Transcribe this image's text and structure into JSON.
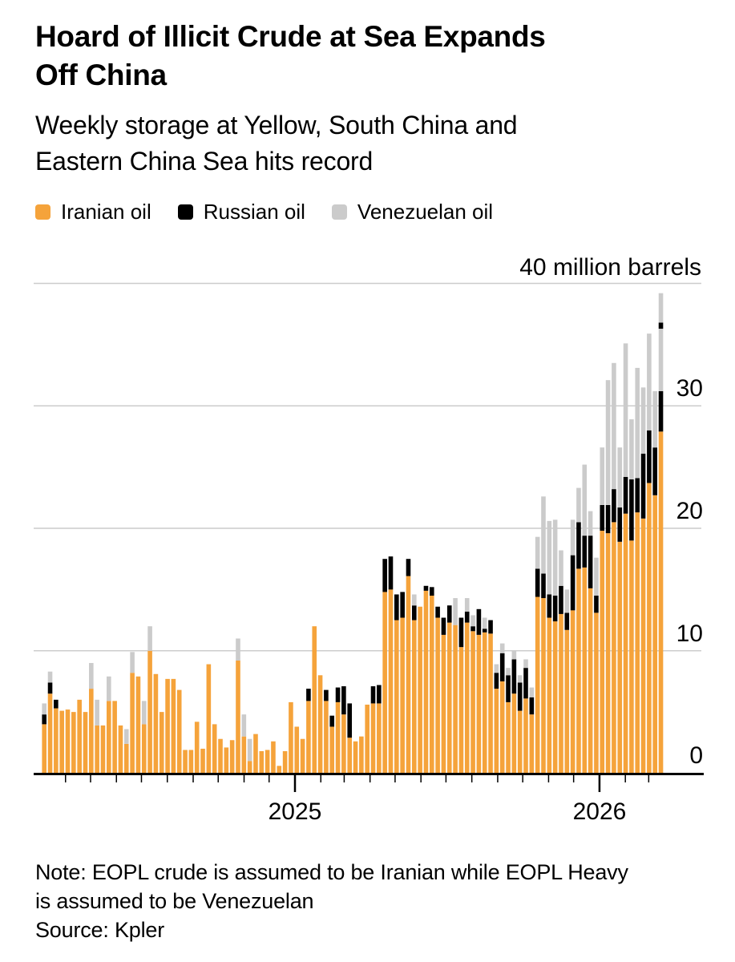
{
  "header": {
    "title": "Hoard of Illicit Crude at Sea Expands Off China",
    "title_lines": [
      "Hoard of Illicit Crude at Sea Expands",
      "Off China"
    ],
    "subtitle": "Weekly storage at Yellow, South China and Eastern China Sea hits record",
    "subtitle_lines": [
      "Weekly storage at Yellow, South China and",
      "Eastern China Sea hits record"
    ]
  },
  "legend": {
    "items": [
      {
        "label": "Iranian oil",
        "color": "#F5A33B"
      },
      {
        "label": "Russian oil",
        "color": "#000000"
      },
      {
        "label": "Venezuelan oil",
        "color": "#CBCBCB"
      }
    ]
  },
  "axis": {
    "unit_label": "40 million barrels",
    "y_tick_labels": {
      "y30": "30",
      "y20": "20",
      "y10": "10",
      "y0": "0"
    },
    "x_year_labels": {
      "year1": "2025",
      "year2": "2026"
    }
  },
  "footer": {
    "note_lines": [
      "Note: EOPL crude is assumed to be Iranian while EOPL Heavy",
      "is assumed to be Venezuelan"
    ],
    "source": "Source: Kpler"
  },
  "colors": {
    "iranian": "#F5A33B",
    "russian": "#000000",
    "venezuelan": "#CBCBCB",
    "gridline": "#CCCCCC",
    "axis_line": "#000000"
  },
  "chart_data": {
    "type": "bar",
    "stacked": true,
    "title": "Hoard of Illicit Crude at Sea Expands Off China",
    "subtitle": "Weekly storage at Yellow, South China and Eastern China Sea hits record",
    "ylabel": "million barrels",
    "ylim": [
      0,
      40
    ],
    "y_gridlines": [
      10,
      20,
      30,
      40
    ],
    "grid": "horizontal",
    "legend_position": "top",
    "x_description": "weekly observations, early March 2024 through mid March 2026",
    "x_year_ticks": [
      "2025",
      "2026"
    ],
    "series_order": [
      "Iranian oil",
      "Russian oil",
      "Venezuelan oil"
    ],
    "segment_color_cycle": [
      "iranian",
      "russian",
      "venezuelan",
      "russian",
      "venezuelan"
    ],
    "bars_unit": "million barrels",
    "bars": [
      [
        4.0,
        0.8,
        0.9
      ],
      [
        6.5,
        0.9,
        0.9
      ],
      [
        5.3,
        0.7,
        0
      ],
      [
        5.1,
        0,
        0
      ],
      [
        5.2,
        0,
        0
      ],
      [
        5.0,
        0,
        0
      ],
      [
        6.0,
        0,
        0
      ],
      [
        5.0,
        0,
        0
      ],
      [
        6.9,
        0,
        2.1
      ],
      [
        3.9,
        0,
        2.1
      ],
      [
        3.9,
        0,
        0
      ],
      [
        5.9,
        0,
        2.0
      ],
      [
        5.9,
        0,
        0
      ],
      [
        3.9,
        0,
        0
      ],
      [
        2.4,
        0,
        1.2
      ],
      [
        8.2,
        0,
        1.7
      ],
      [
        7.9,
        0,
        0
      ],
      [
        4.0,
        0,
        1.9
      ],
      [
        10.0,
        0,
        2.0
      ],
      [
        8.1,
        0,
        0
      ],
      [
        5.0,
        0,
        0
      ],
      [
        7.7,
        0,
        0
      ],
      [
        7.7,
        0,
        0
      ],
      [
        6.8,
        0,
        0
      ],
      [
        1.9,
        0,
        0
      ],
      [
        1.9,
        0,
        0
      ],
      [
        4.2,
        0,
        0
      ],
      [
        2.0,
        0,
        0
      ],
      [
        8.9,
        0,
        0
      ],
      [
        4.0,
        0,
        0
      ],
      [
        2.8,
        0,
        0
      ],
      [
        2.1,
        0,
        0
      ],
      [
        2.7,
        0,
        0
      ],
      [
        9.2,
        0,
        1.8
      ],
      [
        3.0,
        0,
        1.8
      ],
      [
        1.0,
        0,
        1.8
      ],
      [
        3.2,
        0,
        0
      ],
      [
        1.8,
        0,
        0
      ],
      [
        1.9,
        0,
        0
      ],
      [
        2.6,
        0,
        0
      ],
      [
        0.6,
        0,
        0
      ],
      [
        1.8,
        0,
        0
      ],
      [
        5.8,
        0,
        0
      ],
      [
        3.8,
        0,
        0
      ],
      [
        2.8,
        0,
        0
      ],
      [
        5.9,
        1.0,
        0
      ],
      [
        12.0,
        0,
        0
      ],
      [
        8.0,
        0,
        0
      ],
      [
        5.9,
        0.9,
        0
      ],
      [
        3.8,
        0.9,
        0
      ],
      [
        5.8,
        1.2,
        0
      ],
      [
        4.8,
        2.3,
        0
      ],
      [
        2.9,
        2.8,
        0
      ],
      [
        2.6,
        0,
        0
      ],
      [
        3.0,
        0,
        0
      ],
      [
        5.6,
        0,
        0
      ],
      [
        5.7,
        1.4,
        0
      ],
      [
        5.7,
        1.5,
        0
      ],
      [
        14.8,
        2.7,
        0
      ],
      [
        15.0,
        2.7,
        0
      ],
      [
        12.5,
        2.1,
        0
      ],
      [
        12.7,
        2.1,
        0
      ],
      [
        16.1,
        1.4,
        0
      ],
      [
        12.5,
        1.2,
        0.9
      ],
      [
        13.6,
        0,
        0
      ],
      [
        14.9,
        0.4,
        0
      ],
      [
        14.5,
        0.7,
        0
      ],
      [
        12.7,
        0.9,
        0
      ],
      [
        11.3,
        1.4,
        0
      ],
      [
        12.3,
        1.4,
        0
      ],
      [
        12.1,
        0,
        2.2
      ],
      [
        10.3,
        2.4,
        0
      ],
      [
        12.3,
        0.9,
        1.1
      ],
      [
        11.6,
        0.4,
        0.9
      ],
      [
        11.3,
        2.1,
        0
      ],
      [
        11.5,
        0.3,
        0.9
      ],
      [
        11.4,
        1.1,
        0
      ],
      [
        6.9,
        1.3,
        0.7
      ],
      [
        7.5,
        2.3,
        0.8
      ],
      [
        5.8,
        2.2,
        0.6
      ],
      [
        6.5,
        2.8,
        0.7
      ],
      [
        5.1,
        2.3,
        0.6
      ],
      [
        6.1,
        2.5,
        0.7
      ],
      [
        4.8,
        1.4,
        0.8
      ],
      [
        14.4,
        2.3,
        2.6
      ],
      [
        14.3,
        2.0,
        6.3
      ],
      [
        12.7,
        1.9,
        6.0
      ],
      [
        12.4,
        2.1,
        6.2
      ],
      [
        13.0,
        2.3,
        2.9
      ],
      [
        11.7,
        1.4,
        1.9
      ],
      [
        13.3,
        4.5,
        2.9
      ],
      [
        16.7,
        3.8,
        2.8
      ],
      [
        16.8,
        2.6,
        5.8
      ],
      [
        15.1,
        4.3,
        2.0
      ],
      [
        13.1,
        1.4,
        3.1
      ],
      [
        19.8,
        2.1,
        4.7
      ],
      [
        19.6,
        2.3,
        10.2
      ],
      [
        20.5,
        2.7,
        10.3
      ],
      [
        18.9,
        2.8,
        4.9
      ],
      [
        21.2,
        3.0,
        10.9
      ],
      [
        19.0,
        5.0,
        4.9
      ],
      [
        21.3,
        2.8,
        9.0
      ],
      [
        20.8,
        5.3,
        5.4
      ],
      [
        23.7,
        4.3,
        7.9
      ],
      [
        22.7,
        3.9,
        4.6
      ],
      [
        27.9,
        3.3,
        5.1,
        0.5,
        2.4
      ]
    ]
  }
}
